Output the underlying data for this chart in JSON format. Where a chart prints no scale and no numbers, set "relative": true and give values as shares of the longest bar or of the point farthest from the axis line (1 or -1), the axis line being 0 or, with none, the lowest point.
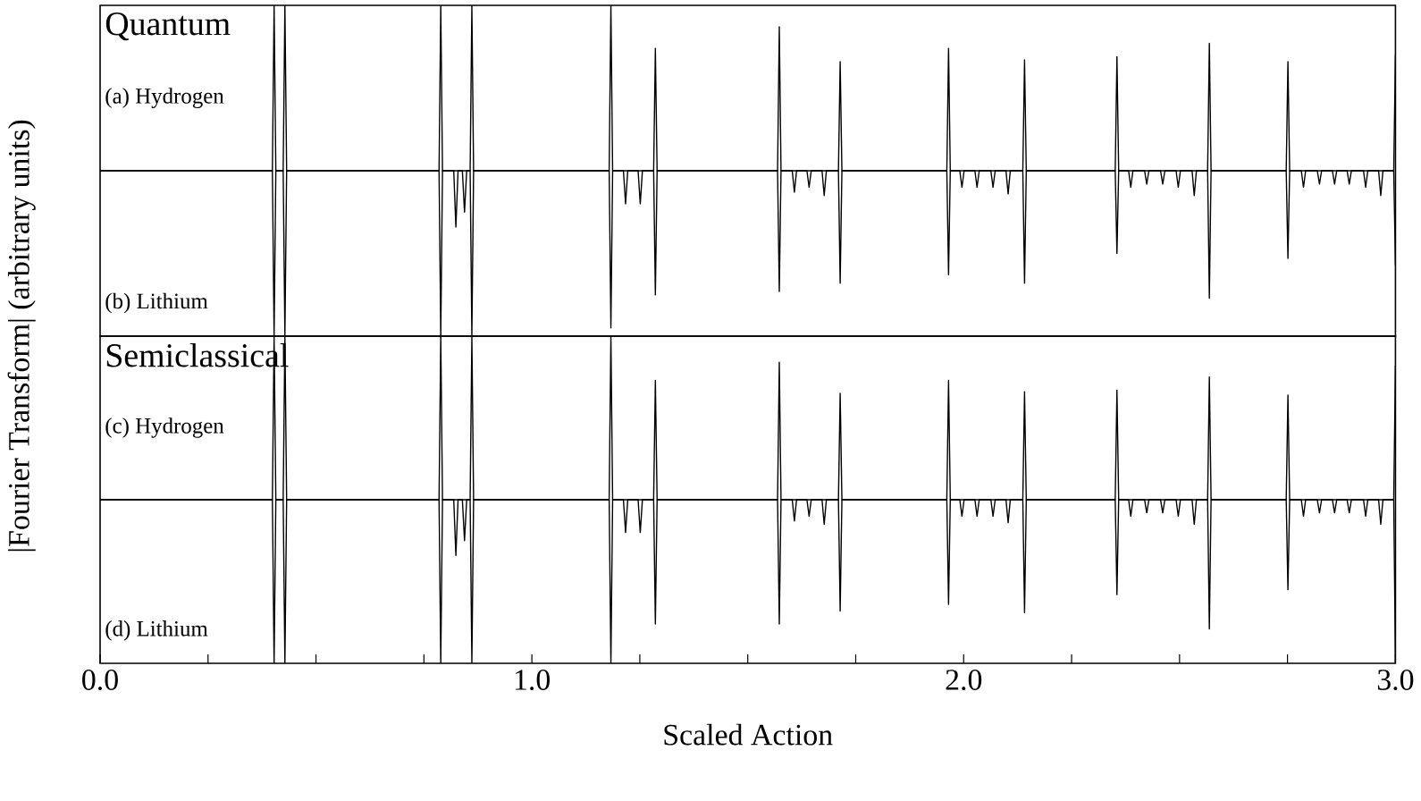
{
  "chart_data": [
    {
      "type": "line",
      "title": "Quantum",
      "xlim": [
        0,
        3
      ],
      "tick_labels": false,
      "relative": true,
      "series": [
        {
          "name": "(a) Hydrogen",
          "color": "#000000",
          "x": [
            0,
            0.399,
            0.403,
            0.407,
            0.424,
            0.428,
            0.432,
            0.785,
            0.789,
            0.793,
            0.857,
            0.861,
            0.865,
            1.179,
            1.183,
            1.187,
            1.282,
            1.286,
            1.29,
            1.569,
            1.573,
            1.577,
            1.71,
            1.714,
            1.718,
            1.961,
            1.965,
            1.969,
            2.137,
            2.141,
            2.145,
            2.351,
            2.355,
            2.359,
            2.565,
            2.569,
            2.573,
            2.747,
            2.751,
            2.755,
            2.996,
            3.0
          ],
          "values": [
            0.5,
            0.5,
            1,
            0.5,
            0.5,
            1,
            0.5,
            0.5,
            1,
            0.5,
            0.5,
            1,
            0.5,
            0.5,
            1,
            0.5,
            0.5,
            0.87,
            0.5,
            0.5,
            0.935,
            0.5,
            0.5,
            0.83,
            0.5,
            0.5,
            0.87,
            0.5,
            0.5,
            0.835,
            0.5,
            0.5,
            0.845,
            0.5,
            0.5,
            0.885,
            0.5,
            0.5,
            0.83,
            0.5,
            0.5,
            0.85
          ]
        },
        {
          "name": "(b) Lithium",
          "color": "#000000",
          "x": [
            0,
            0.399,
            0.403,
            0.407,
            0.424,
            0.428,
            0.432,
            0.785,
            0.789,
            0.793,
            0.819,
            0.824,
            0.829,
            0.839,
            0.844,
            0.849,
            0.857,
            0.861,
            0.865,
            1.179,
            1.183,
            1.187,
            1.212,
            1.217,
            1.222,
            1.246,
            1.251,
            1.256,
            1.282,
            1.286,
            1.29,
            1.569,
            1.573,
            1.577,
            1.603,
            1.608,
            1.613,
            1.637,
            1.642,
            1.647,
            1.672,
            1.677,
            1.682,
            1.71,
            1.714,
            1.718,
            1.961,
            1.965,
            1.969,
            1.991,
            1.996,
            2.001,
            2.026,
            2.031,
            2.036,
            2.063,
            2.068,
            2.073,
            2.098,
            2.103,
            2.108,
            2.137,
            2.141,
            2.145,
            2.351,
            2.355,
            2.359,
            2.382,
            2.387,
            2.392,
            2.419,
            2.424,
            2.429,
            2.456,
            2.461,
            2.466,
            2.492,
            2.497,
            2.502,
            2.529,
            2.534,
            2.539,
            2.565,
            2.569,
            2.573,
            2.747,
            2.751,
            2.755,
            2.782,
            2.787,
            2.792,
            2.819,
            2.824,
            2.829,
            2.854,
            2.859,
            2.864,
            2.888,
            2.893,
            2.898,
            2.926,
            2.931,
            2.936,
            2.961,
            2.966,
            2.971,
            2.996,
            3.0
          ],
          "values": [
            0.5,
            0.5,
            0,
            0.5,
            0.5,
            0,
            0.5,
            0.5,
            0,
            0.5,
            0.5,
            0.33,
            0.5,
            0.5,
            0.375,
            0.5,
            0.5,
            0,
            0.5,
            0.5,
            0.025,
            0.5,
            0.5,
            0.4,
            0.5,
            0.5,
            0.4,
            0.5,
            0.5,
            0.125,
            0.5,
            0.5,
            0.135,
            0.5,
            0.5,
            0.435,
            0.5,
            0.5,
            0.45,
            0.5,
            0.5,
            0.425,
            0.5,
            0.5,
            0.16,
            0.5,
            0.5,
            0.185,
            0.5,
            0.5,
            0.45,
            0.5,
            0.5,
            0.45,
            0.5,
            0.5,
            0.45,
            0.5,
            0.5,
            0.43,
            0.5,
            0.5,
            0.16,
            0.5,
            0.5,
            0.25,
            0.5,
            0.5,
            0.45,
            0.5,
            0.5,
            0.46,
            0.5,
            0.5,
            0.46,
            0.5,
            0.5,
            0.45,
            0.5,
            0.5,
            0.425,
            0.5,
            0.5,
            0.115,
            0.5,
            0.5,
            0.235,
            0.5,
            0.5,
            0.45,
            0.5,
            0.5,
            0.46,
            0.5,
            0.5,
            0.46,
            0.5,
            0.5,
            0.46,
            0.5,
            0.5,
            0.45,
            0.5,
            0.5,
            0.425,
            0.5,
            0.5,
            0.215
          ]
        }
      ]
    },
    {
      "type": "line",
      "title": "Semiclassical",
      "xlabel": "Scaled Action",
      "ylabel": "|Fourier Transform| (arbitrary units)",
      "xlim": [
        0,
        3
      ],
      "tick_labels": "x",
      "relative": true,
      "xticks": [
        {
          "value": 0,
          "label": "0.0"
        },
        {
          "value": 0.25,
          "label": null
        },
        {
          "value": 0.5,
          "label": null
        },
        {
          "value": 0.75,
          "label": null
        },
        {
          "value": 1,
          "label": "1.0"
        },
        {
          "value": 1.25,
          "label": null
        },
        {
          "value": 1.5,
          "label": null
        },
        {
          "value": 1.75,
          "label": null
        },
        {
          "value": 2,
          "label": "2.0"
        },
        {
          "value": 2.25,
          "label": null
        },
        {
          "value": 2.5,
          "label": null
        },
        {
          "value": 2.75,
          "label": null
        },
        {
          "value": 3,
          "label": "3.0"
        }
      ],
      "series": [
        {
          "name": "(c) Hydrogen",
          "color": "#000000",
          "x": [
            0,
            0.399,
            0.403,
            0.407,
            0.424,
            0.428,
            0.432,
            0.785,
            0.789,
            0.793,
            0.857,
            0.861,
            0.865,
            1.179,
            1.183,
            1.187,
            1.282,
            1.286,
            1.29,
            1.569,
            1.573,
            1.577,
            1.71,
            1.714,
            1.718,
            1.961,
            1.965,
            1.969,
            2.137,
            2.141,
            2.145,
            2.351,
            2.355,
            2.359,
            2.565,
            2.569,
            2.573,
            2.747,
            2.751,
            2.755,
            2.996,
            3.0
          ],
          "values": [
            0.5,
            0.5,
            1,
            0.5,
            0.5,
            1,
            0.5,
            0.5,
            1,
            0.5,
            0.5,
            1,
            0.5,
            0.5,
            1,
            0.5,
            0.5,
            0.865,
            0.5,
            0.5,
            0.92,
            0.5,
            0.5,
            0.825,
            0.5,
            0.5,
            0.865,
            0.5,
            0.5,
            0.83,
            0.5,
            0.5,
            0.835,
            0.5,
            0.5,
            0.875,
            0.5,
            0.5,
            0.82,
            0.5,
            0.5,
            0.91
          ]
        },
        {
          "name": "(d) Lithium",
          "color": "#000000",
          "x": [
            0,
            0.399,
            0.403,
            0.407,
            0.424,
            0.428,
            0.432,
            0.785,
            0.789,
            0.793,
            0.819,
            0.824,
            0.829,
            0.839,
            0.844,
            0.849,
            0.857,
            0.861,
            0.865,
            1.179,
            1.183,
            1.187,
            1.212,
            1.217,
            1.222,
            1.246,
            1.251,
            1.256,
            1.282,
            1.286,
            1.29,
            1.569,
            1.573,
            1.577,
            1.603,
            1.608,
            1.613,
            1.637,
            1.642,
            1.647,
            1.672,
            1.677,
            1.682,
            1.71,
            1.714,
            1.718,
            1.961,
            1.965,
            1.969,
            1.991,
            1.996,
            2.001,
            2.026,
            2.031,
            2.036,
            2.063,
            2.068,
            2.073,
            2.098,
            2.103,
            2.108,
            2.137,
            2.141,
            2.145,
            2.351,
            2.355,
            2.359,
            2.382,
            2.387,
            2.392,
            2.419,
            2.424,
            2.429,
            2.456,
            2.461,
            2.466,
            2.492,
            2.497,
            2.502,
            2.529,
            2.534,
            2.539,
            2.565,
            2.569,
            2.573,
            2.747,
            2.751,
            2.755,
            2.782,
            2.787,
            2.792,
            2.819,
            2.824,
            2.829,
            2.854,
            2.859,
            2.864,
            2.888,
            2.893,
            2.898,
            2.926,
            2.931,
            2.936,
            2.961,
            2.966,
            2.971,
            2.996,
            3.0
          ],
          "values": [
            0.5,
            0.5,
            0,
            0.5,
            0.5,
            0,
            0.5,
            0.5,
            0,
            0.5,
            0.5,
            0.33,
            0.5,
            0.5,
            0.375,
            0.5,
            0.5,
            0,
            0.5,
            0.5,
            0,
            0.5,
            0.5,
            0.4,
            0.5,
            0.5,
            0.4,
            0.5,
            0.5,
            0.12,
            0.5,
            0.5,
            0.12,
            0.5,
            0.5,
            0.435,
            0.5,
            0.5,
            0.45,
            0.5,
            0.5,
            0.425,
            0.5,
            0.5,
            0.16,
            0.5,
            0.5,
            0.18,
            0.5,
            0.5,
            0.45,
            0.5,
            0.5,
            0.45,
            0.5,
            0.5,
            0.45,
            0.5,
            0.5,
            0.43,
            0.5,
            0.5,
            0.155,
            0.5,
            0.5,
            0.21,
            0.5,
            0.5,
            0.45,
            0.5,
            0.5,
            0.46,
            0.5,
            0.5,
            0.46,
            0.5,
            0.5,
            0.45,
            0.5,
            0.5,
            0.425,
            0.5,
            0.5,
            0.105,
            0.5,
            0.5,
            0.225,
            0.5,
            0.5,
            0.45,
            0.5,
            0.5,
            0.46,
            0.5,
            0.5,
            0.46,
            0.5,
            0.5,
            0.46,
            0.5,
            0.5,
            0.45,
            0.5,
            0.5,
            0.425,
            0.5,
            0.5,
            0
          ]
        }
      ]
    }
  ]
}
